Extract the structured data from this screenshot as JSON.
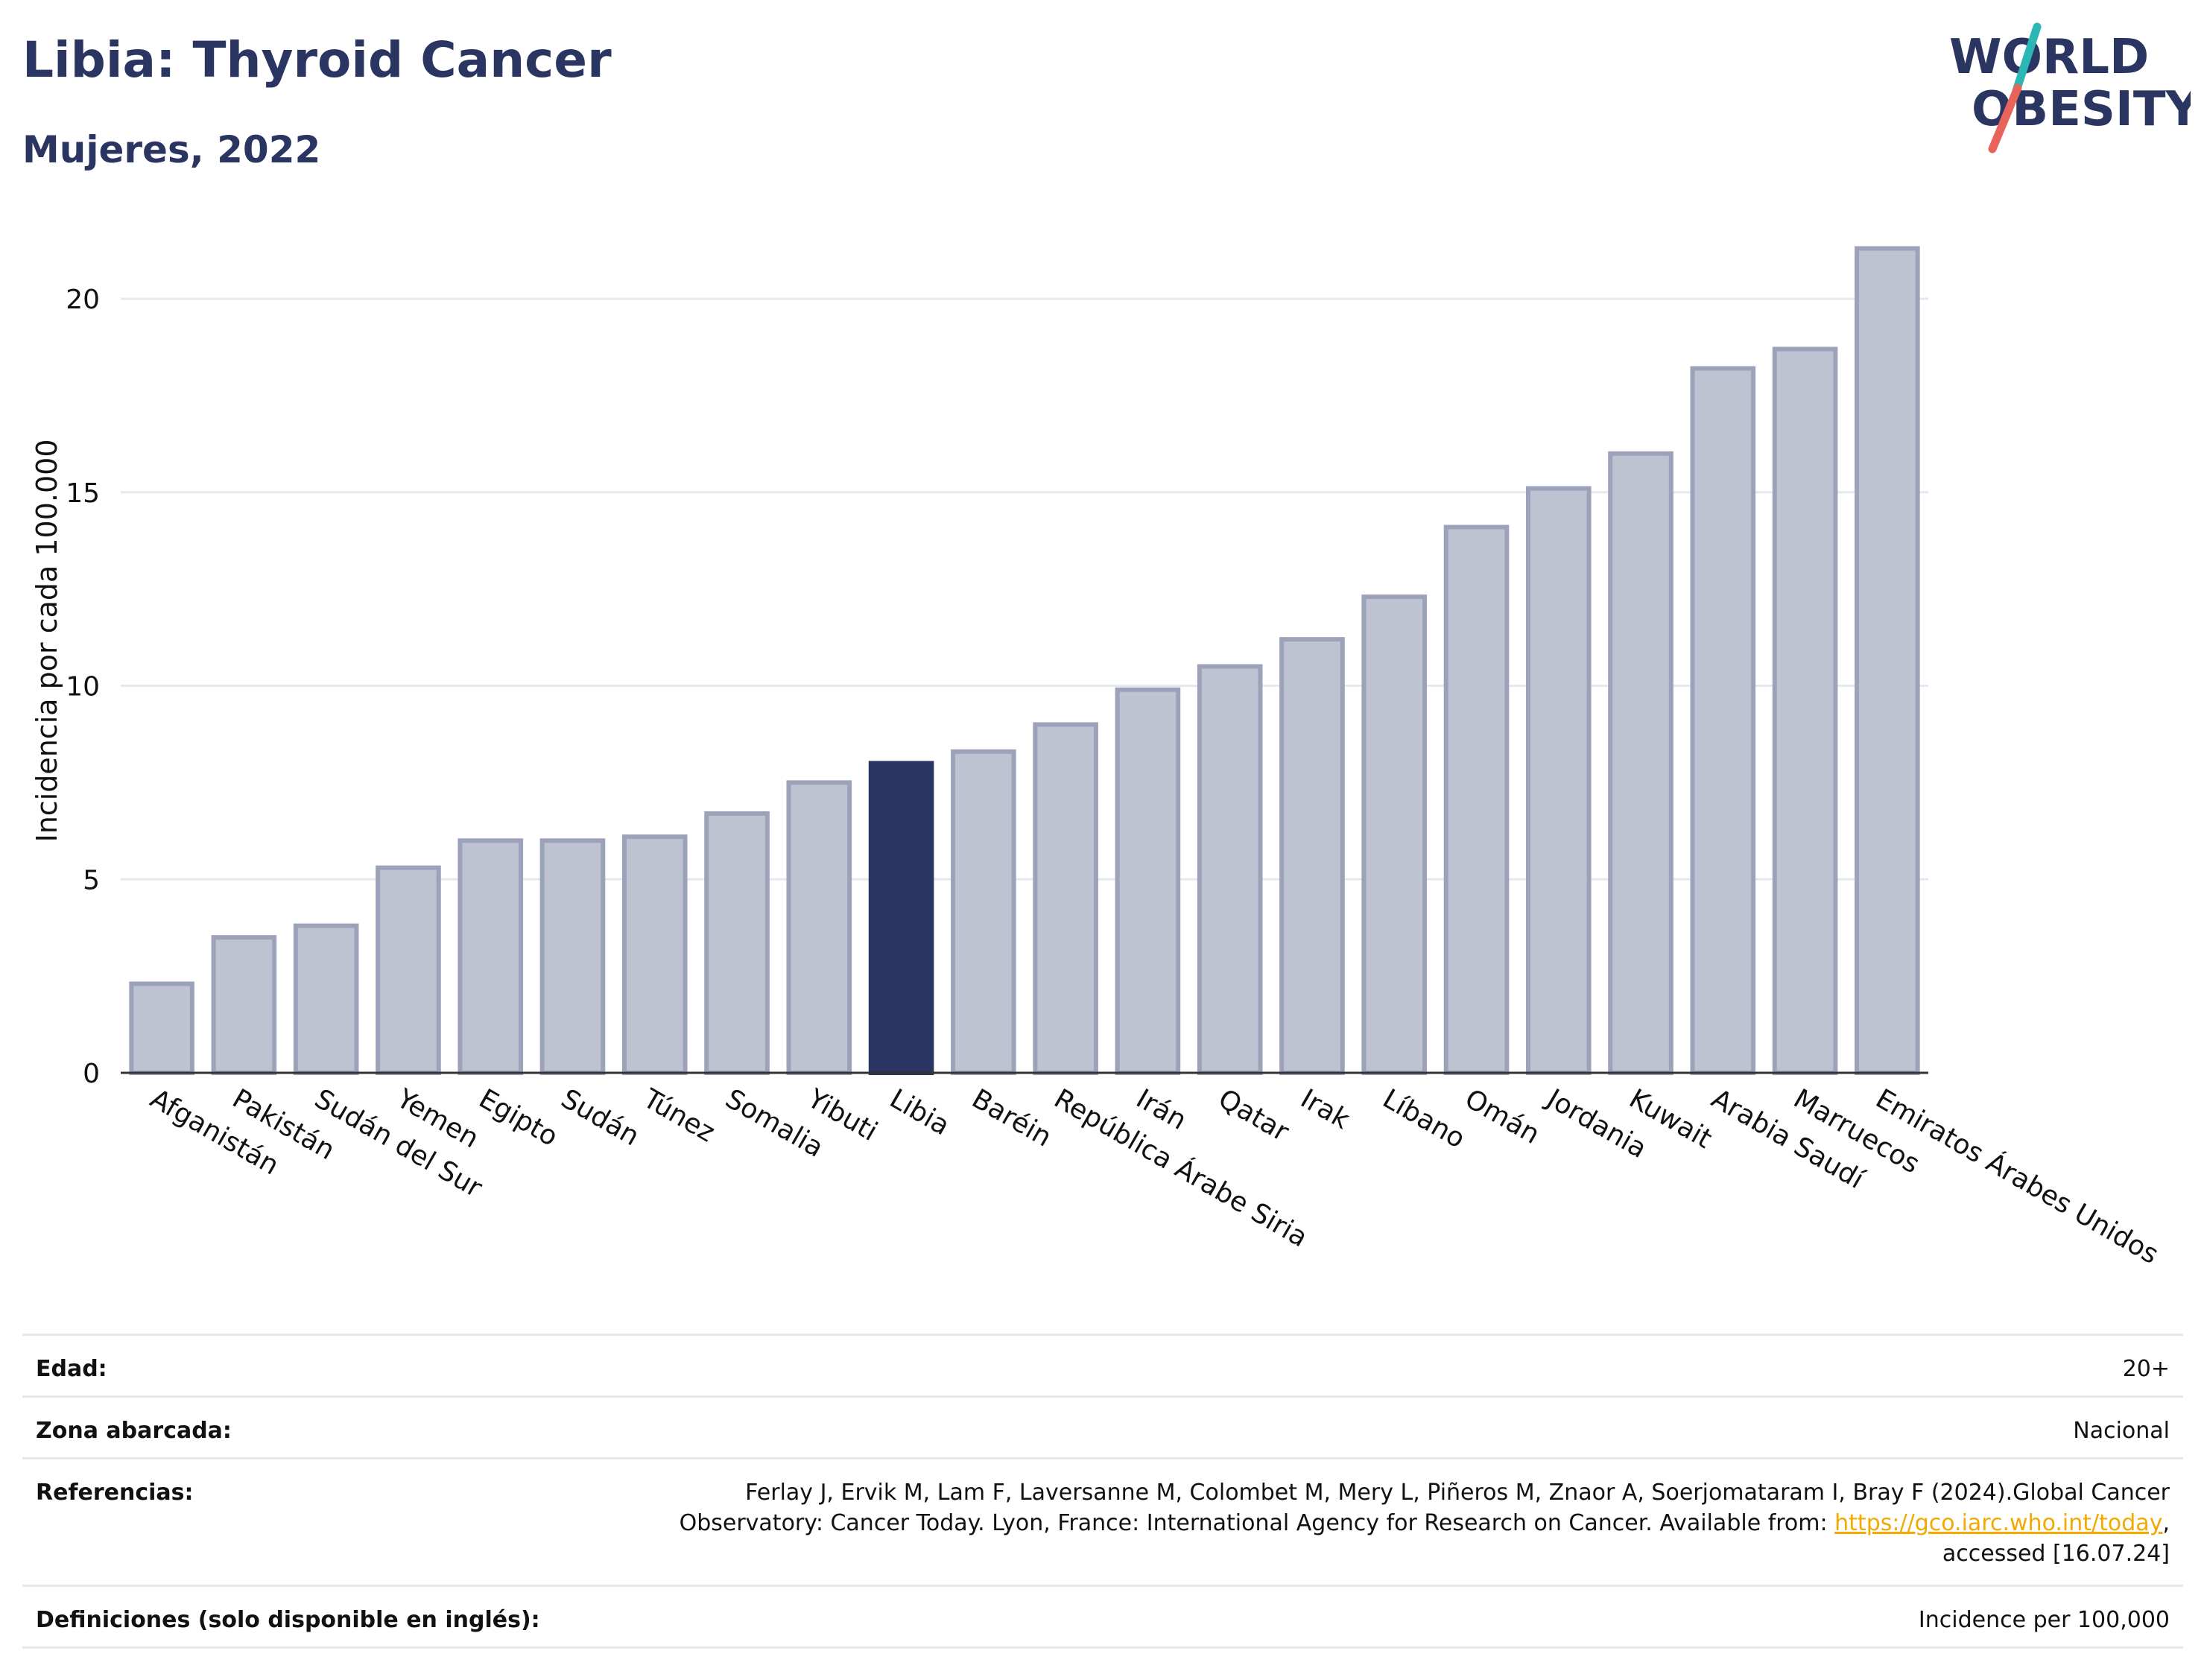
{
  "header": {
    "title": "Libia: Thyroid Cancer",
    "subtitle": "Mujeres, 2022"
  },
  "logo": {
    "line1": "WORLD",
    "line2": "OBESITY",
    "accent_teal": "#2bb7b3",
    "accent_red": "#e8645a"
  },
  "colors": {
    "bar_fill": "#bfc3d1",
    "bar_stroke": "#9ca2b9",
    "highlight": "#2b3561",
    "grid": "#e6e8f0",
    "text_dark": "#2b3561",
    "link": "#f2a900"
  },
  "chart_data": {
    "type": "bar",
    "ylabel": "Incidencia por cada 100.000",
    "ylim": [
      0,
      22
    ],
    "yticks": [
      0,
      5,
      10,
      15,
      20
    ],
    "grid": true,
    "highlight_category": "Libia",
    "categories": [
      "Afganistán",
      "Pakistán",
      "Sudán del Sur",
      "Yemen",
      "Egipto",
      "Sudán",
      "Túnez",
      "Somalia",
      "Yibuti",
      "Libia",
      "Baréin",
      "República Árabe Siria",
      "Irán",
      "Qatar",
      "Irak",
      "Líbano",
      "Omán",
      "Jordania",
      "Kuwait",
      "Arabia Saudí",
      "Marruecos",
      "Emiratos Árabes Unidos"
    ],
    "values": [
      2.3,
      3.5,
      3.8,
      5.3,
      6.0,
      6.0,
      6.1,
      6.7,
      7.5,
      8.0,
      8.3,
      9.0,
      9.9,
      10.5,
      11.2,
      12.3,
      14.1,
      15.1,
      16.0,
      18.2,
      18.7,
      21.3
    ]
  },
  "meta": {
    "age_label": "Edad:",
    "age_value": "20+",
    "area_label": "Zona abarcada:",
    "area_value": "Nacional",
    "refs_label": "Referencias:",
    "refs_line1": "Ferlay J, Ervik M, Lam F, Laversanne M, Colombet M, Mery L, Piñeros M, Znaor A, Soerjomataram I, Bray F (2024).Global Cancer",
    "refs_line2": "Observatory: Cancer Today. Lyon, France: International Agency for Research on Cancer. Available from: ",
    "refs_link": "https://gco.iarc.who.int/today",
    "refs_line3": "accessed [16.07.24]",
    "defs_label": "Definiciones (solo disponible en inglés):",
    "defs_value": "Incidence per 100,000"
  }
}
